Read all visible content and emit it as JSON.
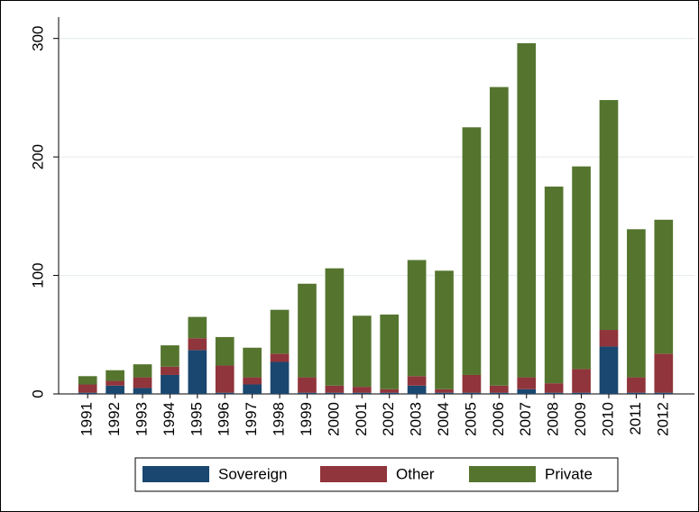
{
  "chart_data": {
    "type": "stacked-bar",
    "categories": [
      "1991",
      "1992",
      "1993",
      "1994",
      "1995",
      "1996",
      "1997",
      "1998",
      "1999",
      "2000",
      "2001",
      "2002",
      "2003",
      "2004",
      "2005",
      "2006",
      "2007",
      "2008",
      "2009",
      "2010",
      "2011",
      "2012"
    ],
    "series": [
      {
        "name": "Sovereign",
        "color": "#1a476f",
        "values": [
          1,
          7,
          5,
          16,
          37,
          1,
          8,
          27,
          1,
          1,
          1,
          1,
          7,
          1,
          1,
          1,
          4,
          1,
          1,
          40,
          1,
          1
        ]
      },
      {
        "name": "Other",
        "color": "#90353b",
        "values": [
          7,
          4,
          9,
          7,
          10,
          23,
          6,
          7,
          13,
          6,
          5,
          3,
          8,
          3,
          15,
          6,
          10,
          8,
          20,
          14,
          13,
          33
        ]
      },
      {
        "name": "Private",
        "color": "#55752f",
        "values": [
          7,
          9,
          11,
          18,
          18,
          24,
          25,
          37,
          79,
          99,
          60,
          63,
          98,
          100,
          209,
          252,
          282,
          166,
          171,
          194,
          125,
          113
        ]
      }
    ],
    "ylim": [
      0,
      318
    ],
    "yticks": [
      0,
      100,
      200,
      300
    ],
    "grid": true,
    "legend": "bottom"
  }
}
